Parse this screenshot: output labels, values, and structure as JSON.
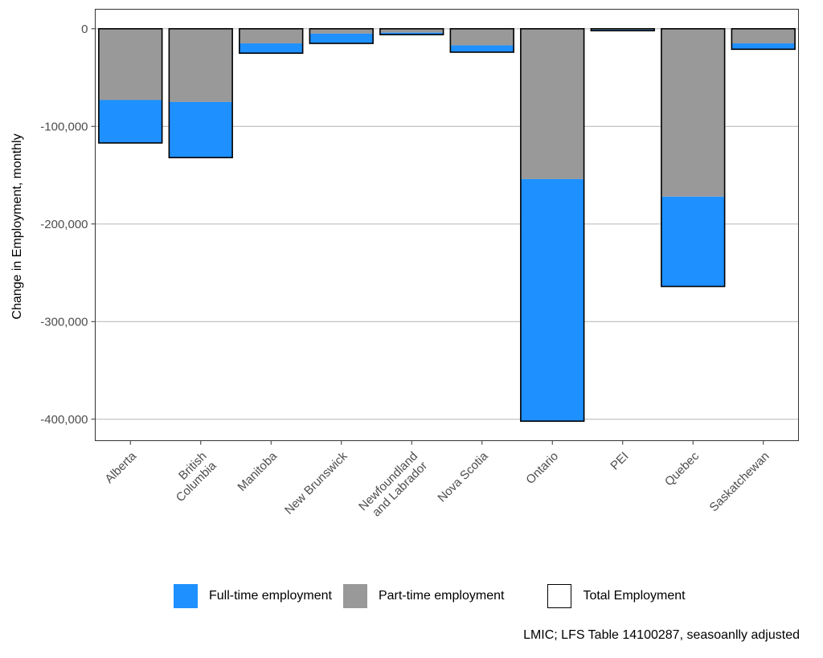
{
  "chart_data": {
    "type": "bar",
    "stacked": true,
    "categories": [
      "Alberta",
      "British Columbia",
      "Manitoba",
      "New Brunswick",
      "Newfoundland and Labrador",
      "Nova Scotia",
      "Ontario",
      "PEI",
      "Quebec",
      "Saskatchewan"
    ],
    "category_labels": [
      [
        "Alberta"
      ],
      [
        "British",
        "Columbia"
      ],
      [
        "Manitoba"
      ],
      [
        "New Brunswick"
      ],
      [
        "Newfoundland",
        "and Labrador"
      ],
      [
        "Nova Scotia"
      ],
      [
        "Ontario"
      ],
      [
        "PEI"
      ],
      [
        "Quebec"
      ],
      [
        "Saskatchewan"
      ]
    ],
    "series": [
      {
        "name": "Part-time employment",
        "color": "#999999",
        "values": [
          -73000,
          -75000,
          -15000,
          -5000,
          -4000,
          -17000,
          -154000,
          -1000,
          -172000,
          -15000
        ]
      },
      {
        "name": "Full-time employment",
        "color": "#1e90ff",
        "values": [
          -44000,
          -57000,
          -10000,
          -10000,
          -2000,
          -7000,
          -248000,
          -1000,
          -92000,
          -6000
        ]
      }
    ],
    "total": {
      "name": "Total Employment",
      "values": [
        -117000,
        -132000,
        -25000,
        -15000,
        -6000,
        -24000,
        -402000,
        -2000,
        -264000,
        -21000
      ]
    },
    "ylabel": "Change in Employment, monthly",
    "xlabel": "",
    "ylim": [
      -422000,
      20000
    ],
    "yticks": [
      0,
      -100000,
      -200000,
      -300000,
      -400000
    ],
    "ytick_labels": [
      "0",
      "-100,000",
      "-200,000",
      "-300,000",
      "-400,000"
    ],
    "grid": true,
    "legend_position": "bottom",
    "caption": "LMIC; LFS Table 14100287, seasoanlly adjusted"
  },
  "legend": {
    "items": [
      {
        "label": "Full-time employment",
        "color": "#1e90ff"
      },
      {
        "label": "Part-time employment",
        "color": "#999999"
      },
      {
        "label": "Total Employment"
      }
    ]
  }
}
